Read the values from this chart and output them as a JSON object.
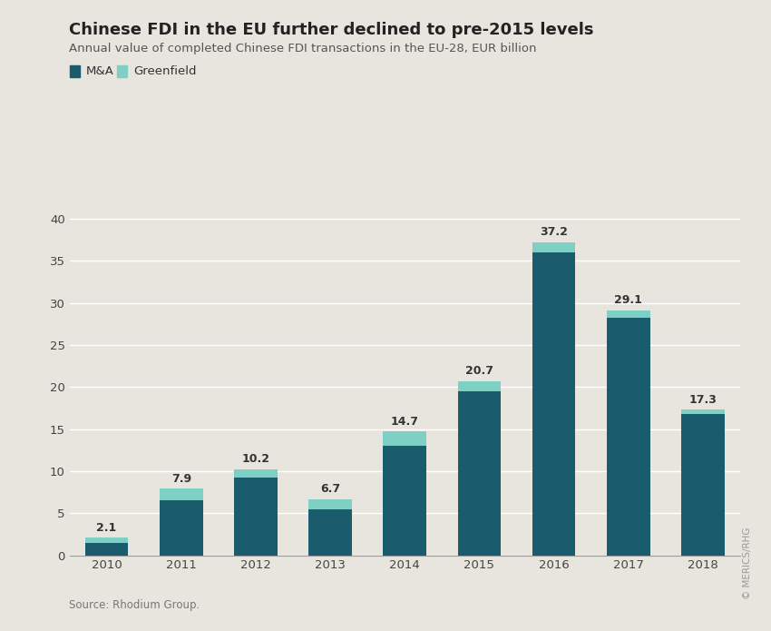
{
  "years": [
    "2010",
    "2011",
    "2012",
    "2013",
    "2014",
    "2015",
    "2016",
    "2017",
    "2018"
  ],
  "ma_values": [
    1.5,
    6.5,
    9.2,
    5.5,
    13.0,
    19.5,
    36.0,
    28.2,
    16.8
  ],
  "greenfield_values": [
    0.6,
    1.4,
    1.0,
    1.2,
    1.7,
    1.2,
    1.2,
    0.9,
    0.5
  ],
  "totals": [
    2.1,
    7.9,
    10.2,
    6.7,
    14.7,
    20.7,
    37.2,
    29.1,
    17.3
  ],
  "ma_color": "#1a5c6e",
  "greenfield_color": "#7ecfc4",
  "background_color": "#e8e5df",
  "title": "Chinese FDI in the EU further declined to pre-2015 levels",
  "subtitle": "Annual value of completed Chinese FDI transactions in the EU-28, EUR billion",
  "source": "Source: Rhodium Group.",
  "copyright": "© MERICS/RHG",
  "ylim": [
    0,
    42
  ],
  "yticks": [
    0,
    5,
    10,
    15,
    20,
    25,
    30,
    35,
    40
  ],
  "legend_ma": "M&A",
  "legend_greenfield": "Greenfield",
  "title_fontsize": 13,
  "subtitle_fontsize": 9.5,
  "label_fontsize": 9,
  "tick_fontsize": 9.5,
  "legend_fontsize": 9.5
}
